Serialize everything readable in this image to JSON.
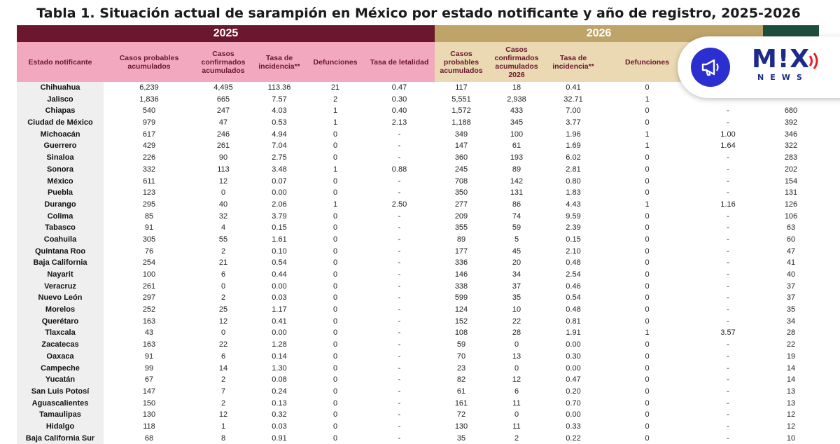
{
  "title": "Tabla 1. Situación actual de sarampión en México por estado notificante y año de registro, 2025-2026",
  "years": {
    "y2025": "2025",
    "y2026": "2026"
  },
  "headers": {
    "estado": "Estado notificante",
    "h25": [
      "Casos probables acumulados",
      "Casos confirmados acumulados",
      "Tasa de incidencia**",
      "Defunciones",
      "Tasa de letalidad"
    ],
    "h26": [
      "Casos probables acumulados",
      "Casos confirmados acumulados 2026",
      "Tasa de incidencia**",
      "Defunciones"
    ]
  },
  "rows": [
    [
      "Chihuahua",
      "6,239",
      "4,495",
      "113.36",
      "21",
      "0.47",
      "117",
      "18",
      "0.41",
      "0",
      "",
      ""
    ],
    [
      "Jalisco",
      "1,836",
      "665",
      "7.57",
      "2",
      "0.30",
      "5,551",
      "2,938",
      "32.71",
      "1",
      "",
      ""
    ],
    [
      "Chiapas",
      "540",
      "247",
      "4.03",
      "1",
      "0.40",
      "1,572",
      "433",
      "7.00",
      "0",
      "-",
      "680"
    ],
    [
      "Ciudad de México",
      "979",
      "47",
      "0.53",
      "1",
      "2.13",
      "1,188",
      "345",
      "3.77",
      "0",
      "-",
      "392"
    ],
    [
      "Michoacán",
      "617",
      "246",
      "4.94",
      "0",
      "-",
      "349",
      "100",
      "1.96",
      "1",
      "1.00",
      "346"
    ],
    [
      "Guerrero",
      "429",
      "261",
      "7.04",
      "0",
      "-",
      "147",
      "61",
      "1.69",
      "1",
      "1.64",
      "322"
    ],
    [
      "Sinaloa",
      "226",
      "90",
      "2.75",
      "0",
      "-",
      "360",
      "193",
      "6.02",
      "0",
      "-",
      "283"
    ],
    [
      "Sonora",
      "332",
      "113",
      "3.48",
      "1",
      "0.88",
      "245",
      "89",
      "2.81",
      "0",
      "-",
      "202"
    ],
    [
      "México",
      "611",
      "12",
      "0.07",
      "0",
      "-",
      "708",
      "142",
      "0.80",
      "0",
      "-",
      "154"
    ],
    [
      "Puebla",
      "123",
      "0",
      "0.00",
      "0",
      "-",
      "350",
      "131",
      "1.83",
      "0",
      "-",
      "131"
    ],
    [
      "Durango",
      "295",
      "40",
      "2.06",
      "1",
      "2.50",
      "277",
      "86",
      "4.43",
      "1",
      "1.16",
      "126"
    ],
    [
      "Colima",
      "85",
      "32",
      "3.79",
      "0",
      "-",
      "209",
      "74",
      "9.59",
      "0",
      "-",
      "106"
    ],
    [
      "Tabasco",
      "91",
      "4",
      "0.15",
      "0",
      "-",
      "355",
      "59",
      "2.39",
      "0",
      "-",
      "63"
    ],
    [
      "Coahuila",
      "305",
      "55",
      "1.61",
      "0",
      "-",
      "89",
      "5",
      "0.15",
      "0",
      "-",
      "60"
    ],
    [
      "Quintana Roo",
      "76",
      "2",
      "0.10",
      "0",
      "-",
      "177",
      "45",
      "2.10",
      "0",
      "-",
      "47"
    ],
    [
      "Baja California",
      "254",
      "21",
      "0.54",
      "0",
      "-",
      "336",
      "20",
      "0.48",
      "0",
      "-",
      "41"
    ],
    [
      "Nayarit",
      "100",
      "6",
      "0.44",
      "0",
      "-",
      "146",
      "34",
      "2.54",
      "0",
      "-",
      "40"
    ],
    [
      "Veracruz",
      "261",
      "0",
      "0.00",
      "0",
      "-",
      "338",
      "37",
      "0.46",
      "0",
      "-",
      "37"
    ],
    [
      "Nuevo León",
      "297",
      "2",
      "0.03",
      "0",
      "-",
      "599",
      "35",
      "0.54",
      "0",
      "-",
      "37"
    ],
    [
      "Morelos",
      "252",
      "25",
      "1.17",
      "0",
      "-",
      "124",
      "10",
      "0.48",
      "0",
      "-",
      "35"
    ],
    [
      "Querétaro",
      "163",
      "12",
      "0.41",
      "0",
      "-",
      "152",
      "22",
      "0.81",
      "0",
      "-",
      "34"
    ],
    [
      "Tlaxcala",
      "43",
      "0",
      "0.00",
      "0",
      "-",
      "108",
      "28",
      "1.91",
      "1",
      "3.57",
      "28"
    ],
    [
      "Zacatecas",
      "163",
      "22",
      "1.28",
      "0",
      "-",
      "59",
      "0",
      "0.00",
      "0",
      "-",
      "22"
    ],
    [
      "Oaxaca",
      "91",
      "6",
      "0.14",
      "0",
      "-",
      "70",
      "13",
      "0.30",
      "0",
      "-",
      "19"
    ],
    [
      "Campeche",
      "99",
      "14",
      "1.30",
      "0",
      "-",
      "23",
      "0",
      "0.00",
      "0",
      "-",
      "14"
    ],
    [
      "Yucatán",
      "67",
      "2",
      "0.08",
      "0",
      "-",
      "82",
      "12",
      "0.47",
      "0",
      "-",
      "14"
    ],
    [
      "San Luis Potosí",
      "147",
      "7",
      "0.24",
      "0",
      "-",
      "61",
      "6",
      "0.20",
      "0",
      "-",
      "13"
    ],
    [
      "Aguascalientes",
      "150",
      "2",
      "0.13",
      "0",
      "-",
      "161",
      "11",
      "0.70",
      "0",
      "-",
      "13"
    ],
    [
      "Tamaulipas",
      "130",
      "12",
      "0.32",
      "0",
      "-",
      "72",
      "0",
      "0.00",
      "0",
      "-",
      "12"
    ],
    [
      "Hidalgo",
      "118",
      "1",
      "0.03",
      "0",
      "-",
      "130",
      "11",
      "0.33",
      "0",
      "-",
      "12"
    ],
    [
      "Baja California Sur",
      "68",
      "8",
      "0.91",
      "0",
      "-",
      "35",
      "2",
      "0.22",
      "0",
      "-",
      "10"
    ]
  ],
  "logo": {
    "brand": "M!X",
    "sub": "NEWS",
    "icon": "megaphone-icon",
    "wave_icon": "signal-waves-icon"
  },
  "colors": {
    "band2025": "#6b1730",
    "band2026": "#bfa46a",
    "bandTotal": "#1f4d3c",
    "header2025": "#f2a9c0",
    "header2026": "#ead9b2",
    "logoBlue": "#2b2fcf"
  }
}
